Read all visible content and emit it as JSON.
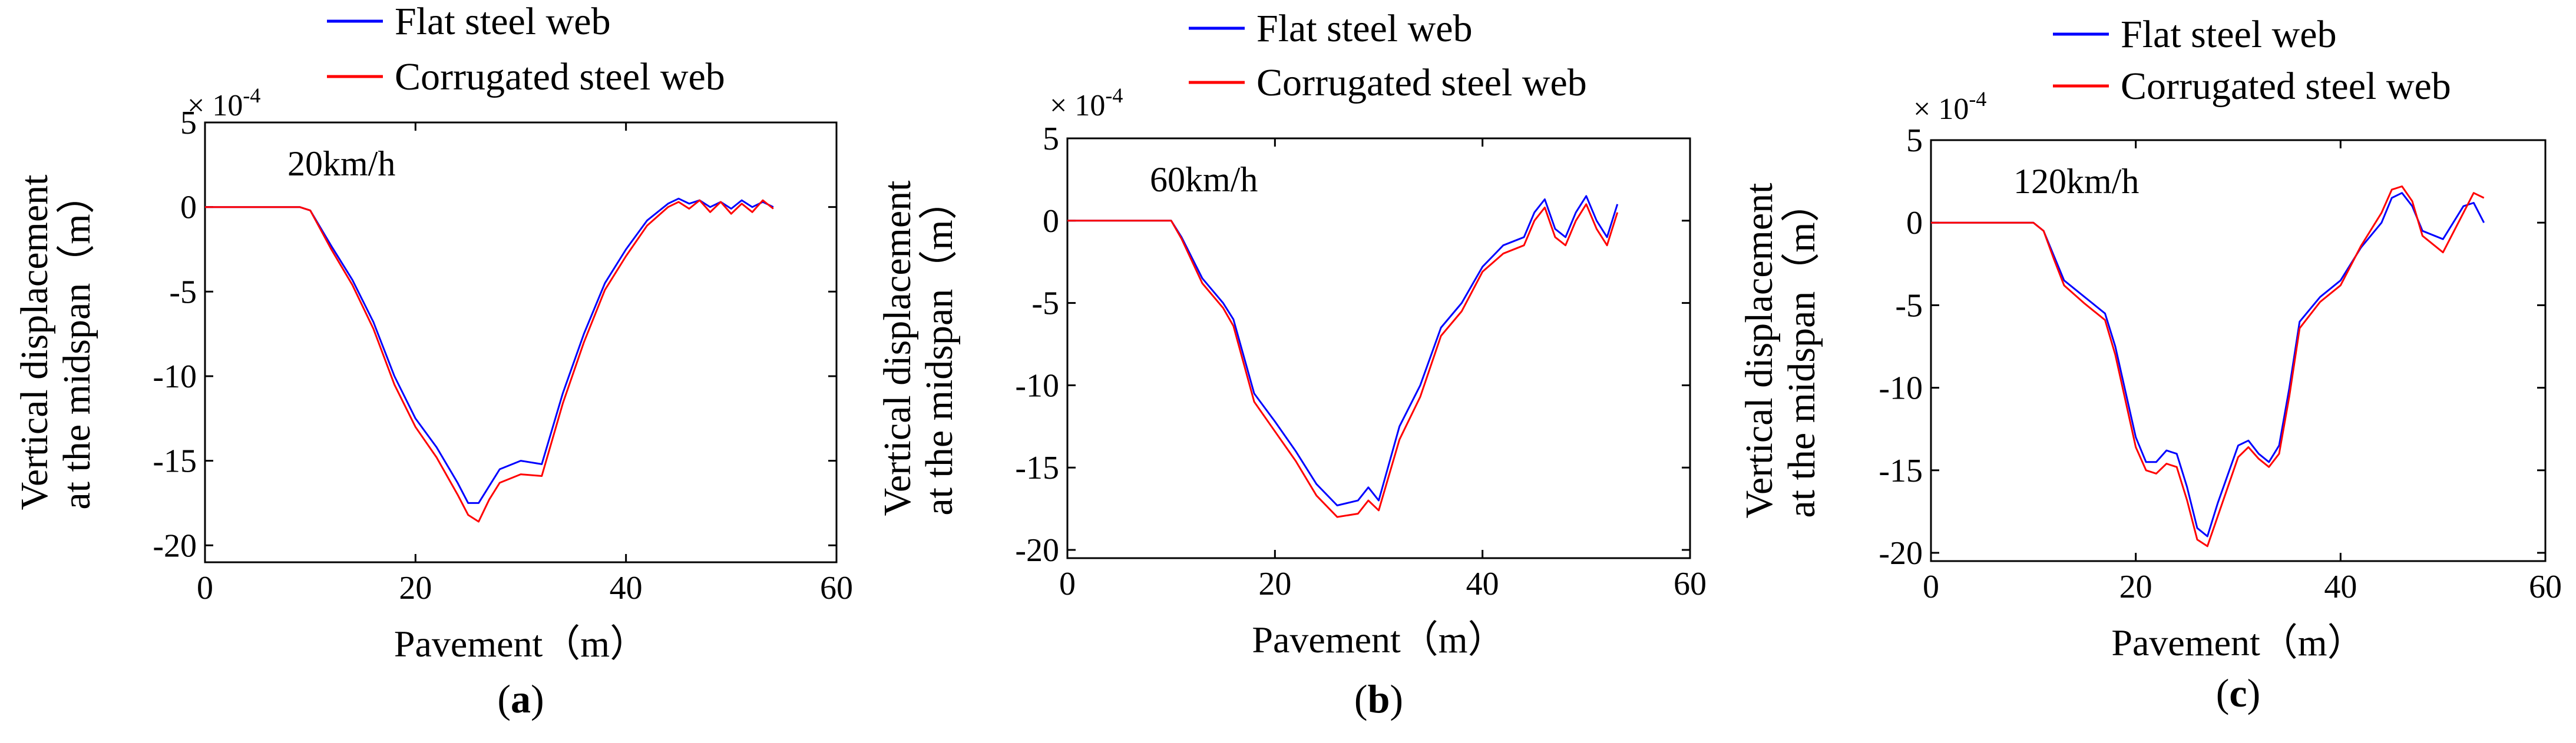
{
  "figure": {
    "panel_labels": [
      {
        "open": "(",
        "letter": "a",
        "close": ")"
      },
      {
        "open": "(",
        "letter": "b",
        "close": ")"
      },
      {
        "open": "(",
        "letter": "c",
        "close": ")"
      }
    ]
  },
  "colors": {
    "flat": "#0000ff",
    "corrugated": "#ff0000",
    "axis": "#000000"
  },
  "chart_data": [
    {
      "type": "line",
      "annotation": "20km/h",
      "xlabel": "Pavement（m）",
      "ylabel": [
        "Vertical displacement",
        "at the midspan（m）"
      ],
      "y_exponent": {
        "base": "× 10",
        "power": "-4"
      },
      "xlim": [
        0,
        60
      ],
      "ylim": [
        -21,
        5
      ],
      "xticks": [
        0,
        20,
        40,
        60
      ],
      "yticks": [
        5,
        0,
        -5,
        -10,
        -15,
        -20
      ],
      "legend": [
        "Flat steel web",
        "Corrugated steel web"
      ],
      "series": [
        {
          "name": "Flat steel web",
          "x": [
            0,
            9,
            10,
            12,
            14,
            16,
            18,
            20,
            22,
            24,
            25,
            26,
            27,
            28,
            30,
            32,
            34,
            36,
            38,
            40,
            42,
            44,
            45,
            46,
            47,
            48,
            49,
            50,
            51,
            52,
            53,
            54
          ],
          "y": [
            0,
            0,
            -0.2,
            -2.3,
            -4.3,
            -6.8,
            -10,
            -12.5,
            -14.2,
            -16.3,
            -17.5,
            -17.5,
            -16.5,
            -15.5,
            -15,
            -15.2,
            -11,
            -7.5,
            -4.5,
            -2.5,
            -0.8,
            0.2,
            0.5,
            0.2,
            0.4,
            0,
            0.3,
            -0.1,
            0.4,
            0,
            0.3,
            0
          ]
        },
        {
          "name": "Corrugated steel web",
          "x": [
            0,
            9,
            10,
            12,
            14,
            16,
            18,
            20,
            22,
            24,
            25,
            26,
            27,
            28,
            30,
            32,
            34,
            36,
            38,
            40,
            42,
            44,
            45,
            46,
            47,
            48,
            49,
            50,
            51,
            52,
            53,
            54
          ],
          "y": [
            0,
            0,
            -0.2,
            -2.5,
            -4.6,
            -7.2,
            -10.5,
            -13,
            -14.8,
            -17,
            -18.2,
            -18.6,
            -17.3,
            -16.3,
            -15.8,
            -15.9,
            -11.6,
            -8,
            -4.9,
            -2.9,
            -1.1,
            0,
            0.3,
            -0.1,
            0.4,
            -0.3,
            0.3,
            -0.4,
            0.2,
            -0.3,
            0.4,
            -0.1
          ]
        }
      ]
    },
    {
      "type": "line",
      "annotation": "60km/h",
      "xlabel": "Pavement（m）",
      "ylabel": [
        "Vertical displacement",
        "at the midspan（m）"
      ],
      "y_exponent": {
        "base": "× 10",
        "power": "-4"
      },
      "xlim": [
        0,
        60
      ],
      "ylim": [
        -20.5,
        5
      ],
      "xticks": [
        0,
        20,
        40,
        60
      ],
      "yticks": [
        5,
        0,
        -5,
        -10,
        -15,
        -20
      ],
      "legend": [
        "Flat steel web",
        "Corrugated steel web"
      ],
      "series": [
        {
          "name": "Flat steel web",
          "x": [
            0,
            10,
            11,
            13,
            15,
            16,
            18,
            20,
            22,
            24,
            26,
            28,
            29,
            30,
            32,
            34,
            36,
            38,
            40,
            42,
            44,
            45,
            46,
            47,
            48,
            49,
            50,
            51,
            52,
            53
          ],
          "y": [
            0,
            0,
            -1,
            -3.5,
            -5,
            -6,
            -10.5,
            -12.2,
            -14,
            -16,
            -17.3,
            -17,
            -16.2,
            -17,
            -12.5,
            -10,
            -6.5,
            -5,
            -2.8,
            -1.5,
            -1,
            0.5,
            1.3,
            -0.5,
            -1,
            0.5,
            1.5,
            0,
            -1,
            1
          ]
        },
        {
          "name": "Corrugated steel web",
          "x": [
            0,
            10,
            11,
            13,
            15,
            16,
            18,
            20,
            22,
            24,
            26,
            28,
            29,
            30,
            32,
            34,
            36,
            38,
            40,
            42,
            44,
            45,
            46,
            47,
            48,
            49,
            50,
            51,
            52,
            53
          ],
          "y": [
            0,
            0,
            -1.1,
            -3.8,
            -5.3,
            -6.4,
            -11,
            -12.8,
            -14.6,
            -16.7,
            -18,
            -17.8,
            -17,
            -17.6,
            -13.3,
            -10.7,
            -7,
            -5.5,
            -3.1,
            -2,
            -1.5,
            0,
            0.8,
            -1,
            -1.5,
            0,
            1,
            -0.5,
            -1.5,
            0.5
          ]
        }
      ]
    },
    {
      "type": "line",
      "annotation": "120km/h",
      "xlabel": "Pavement（m）",
      "ylabel": [
        "Vertical displacement",
        "at the midspan（m）"
      ],
      "y_exponent": {
        "base": "× 10",
        "power": "-4"
      },
      "xlim": [
        0,
        60
      ],
      "ylim": [
        -20.5,
        5
      ],
      "xticks": [
        0,
        20,
        40,
        60
      ],
      "yticks": [
        5,
        0,
        -5,
        -10,
        -15,
        -20
      ],
      "legend": [
        "Flat steel web",
        "Corrugated steel web"
      ],
      "series": [
        {
          "name": "Flat steel web",
          "x": [
            0,
            10,
            11,
            12,
            13,
            15,
            17,
            18,
            20,
            21,
            22,
            23,
            24,
            25,
            26,
            27,
            28,
            30,
            31,
            32,
            33,
            34,
            35,
            36,
            38,
            40,
            42,
            44,
            45,
            46,
            47,
            48,
            50,
            52,
            53,
            54
          ],
          "y": [
            0,
            0,
            -0.5,
            -2,
            -3.5,
            -4.5,
            -5.5,
            -7.5,
            -13,
            -14.5,
            -14.5,
            -13.8,
            -14,
            -16,
            -18.5,
            -19,
            -17,
            -13.5,
            -13.2,
            -14,
            -14.5,
            -13.5,
            -10,
            -6,
            -4.5,
            -3.5,
            -1.5,
            0,
            1.5,
            1.8,
            1,
            -0.5,
            -1,
            1,
            1.2,
            0
          ]
        },
        {
          "name": "Corrugated steel web",
          "x": [
            0,
            10,
            11,
            12,
            13,
            15,
            17,
            18,
            20,
            21,
            22,
            23,
            24,
            25,
            26,
            27,
            28,
            30,
            31,
            32,
            33,
            34,
            35,
            36,
            38,
            40,
            42,
            44,
            45,
            46,
            47,
            48,
            50,
            52,
            53,
            54
          ],
          "y": [
            0,
            0,
            -0.5,
            -2.2,
            -3.8,
            -4.9,
            -5.9,
            -8,
            -13.6,
            -15,
            -15.2,
            -14.6,
            -14.8,
            -16.8,
            -19.2,
            -19.6,
            -17.8,
            -14.2,
            -13.6,
            -14.3,
            -14.8,
            -14,
            -10.5,
            -6.4,
            -4.8,
            -3.8,
            -1.4,
            0.6,
            2,
            2.2,
            1.3,
            -0.8,
            -1.8,
            0.6,
            1.8,
            1.5
          ]
        }
      ]
    }
  ]
}
